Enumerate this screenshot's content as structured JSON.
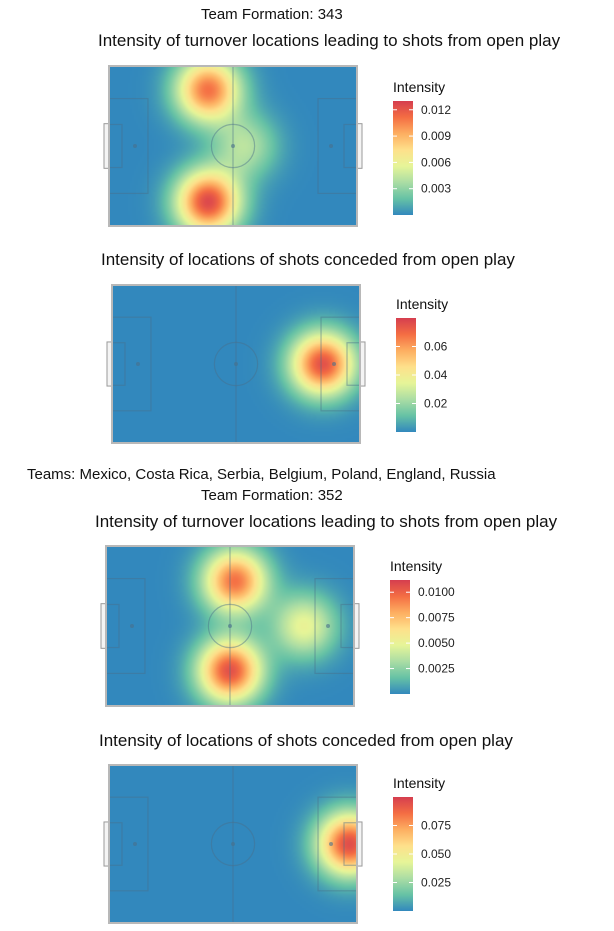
{
  "colors": {
    "scale": [
      "#3288bd",
      "#66c2a5",
      "#abdda4",
      "#e6f598",
      "#fee08b",
      "#fdae61",
      "#f46d43",
      "#d53e4f"
    ],
    "pitch_lines": "#4a6f8a",
    "pitch_border": "#b8b8b8"
  },
  "chart_data": [
    {
      "type": "heatmap",
      "heading": "Team Formation: 343",
      "title": "Intensity of turnover locations leading to shots from open play",
      "legend_title": "Intensity",
      "legend_ticks": [
        "0.012",
        "0.009",
        "0.006",
        "0.003"
      ],
      "legend_tick_values": [
        0.012,
        0.009,
        0.006,
        0.003
      ],
      "scale_range": [
        0,
        0.013
      ],
      "density_peaks": [
        {
          "x": 0.4,
          "y": 0.85,
          "intensity": 0.0125
        },
        {
          "x": 0.4,
          "y": 0.15,
          "intensity": 0.011
        },
        {
          "x": 0.55,
          "y": 0.5,
          "intensity": 0.004
        }
      ]
    },
    {
      "type": "heatmap",
      "title": "Intensity of locations of shots conceded from open play",
      "legend_title": "Intensity",
      "legend_ticks": [
        "0.06",
        "0.04",
        "0.02"
      ],
      "legend_tick_values": [
        0.06,
        0.04,
        0.02
      ],
      "scale_range": [
        0,
        0.08
      ],
      "density_peaks": [
        {
          "x": 0.85,
          "y": 0.5,
          "intensity": 0.075
        }
      ]
    },
    {
      "type": "heatmap",
      "teams_line": "Teams: Mexico, Costa Rica, Serbia, Belgium, Poland, England, Russia",
      "heading": "Team Formation: 352",
      "title": "Intensity of turnover locations leading to shots from open play",
      "legend_title": "Intensity",
      "legend_ticks": [
        "0.0100",
        "0.0075",
        "0.0050",
        "0.0025"
      ],
      "legend_tick_values": [
        0.01,
        0.0075,
        0.005,
        0.0025
      ],
      "scale_range": [
        0,
        0.0112
      ],
      "density_peaks": [
        {
          "x": 0.5,
          "y": 0.78,
          "intensity": 0.0105
        },
        {
          "x": 0.52,
          "y": 0.22,
          "intensity": 0.0095
        },
        {
          "x": 0.8,
          "y": 0.5,
          "intensity": 0.005
        }
      ]
    },
    {
      "type": "heatmap",
      "title": "Intensity of locations of shots conceded from open play",
      "legend_title": "Intensity",
      "legend_ticks": [
        "0.075",
        "0.050",
        "0.025"
      ],
      "legend_tick_values": [
        0.075,
        0.05,
        0.025
      ],
      "scale_range": [
        0,
        0.1
      ],
      "density_peaks": [
        {
          "x": 0.97,
          "y": 0.5,
          "intensity": 0.095
        }
      ]
    }
  ]
}
